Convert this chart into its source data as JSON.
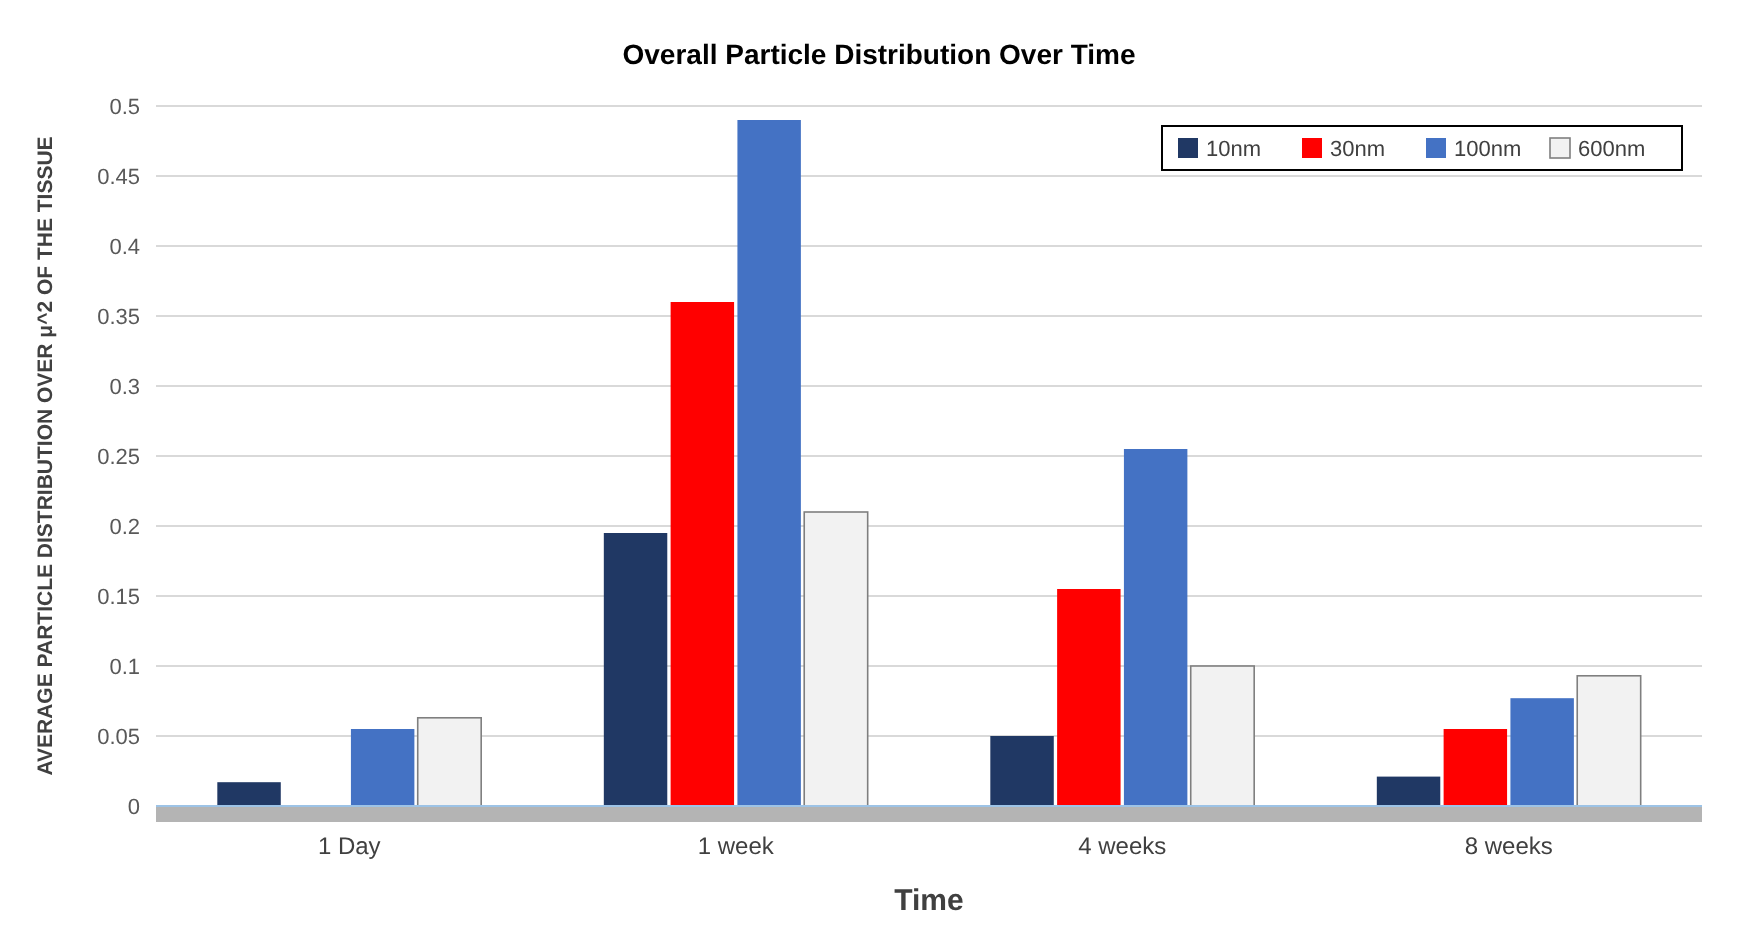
{
  "chart_data": {
    "type": "bar",
    "title": "Overall Particle Distribution Over Time",
    "xlabel": "Time",
    "ylabel": "AVERAGE PARTICLE DISTRIBUTION OVER μ^2 OF THE TISSUE",
    "categories": [
      "1 Day",
      "1 week",
      "4 weeks",
      "8 weeks"
    ],
    "series": [
      {
        "name": "10nm",
        "color": "#203864",
        "values": [
          0.017,
          0.195,
          0.05,
          0.021
        ]
      },
      {
        "name": "30nm",
        "color": "#ff0000",
        "values": [
          0,
          0.36,
          0.155,
          0.055
        ]
      },
      {
        "name": "100nm",
        "color": "#4472c4",
        "values": [
          0.055,
          0.49,
          0.255,
          0.077
        ]
      },
      {
        "name": "600nm",
        "color": "#f2f2f2",
        "values": [
          0.063,
          0.21,
          0.1,
          0.093
        ]
      }
    ],
    "ylim": [
      0,
      0.5
    ],
    "yticks": [
      0,
      0.05,
      0.1,
      0.15,
      0.2,
      0.25,
      0.3,
      0.35,
      0.4,
      0.45,
      0.5
    ],
    "grid": "y",
    "legend": "top right"
  }
}
